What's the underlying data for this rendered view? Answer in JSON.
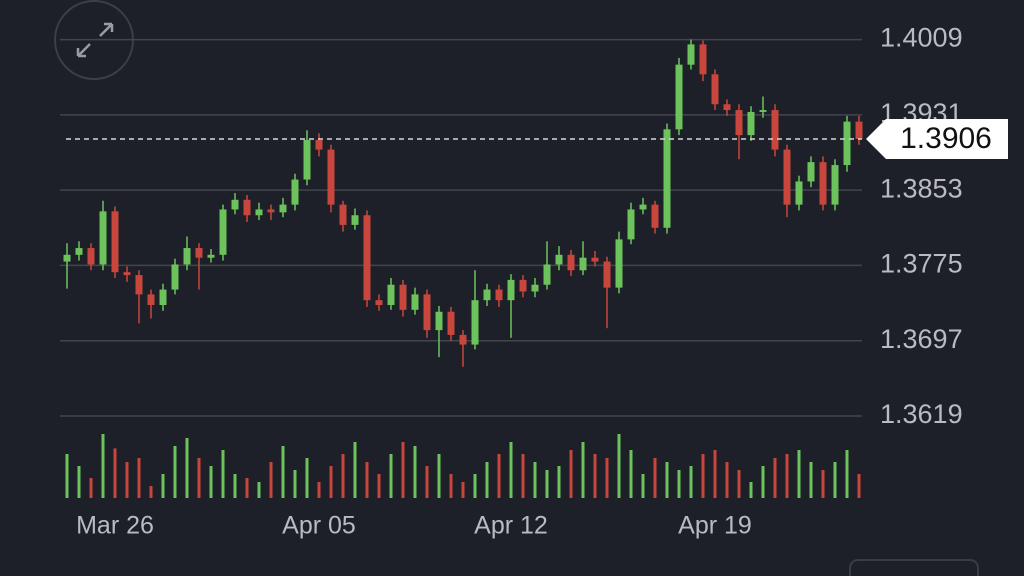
{
  "chart_data": {
    "type": "candlestick",
    "categories": [
      null,
      null,
      null,
      null,
      "Mar 26",
      null,
      null,
      null,
      null,
      null,
      null,
      null,
      null,
      null,
      null,
      null,
      null,
      null,
      null,
      null,
      null,
      "Apr 05",
      null,
      null,
      null,
      null,
      null,
      null,
      null,
      null,
      null,
      null,
      null,
      null,
      null,
      null,
      null,
      "Apr 12",
      null,
      null,
      null,
      null,
      null,
      null,
      null,
      null,
      null,
      null,
      null,
      null,
      null,
      null,
      null,
      null,
      "Apr 19",
      null,
      null,
      null,
      null,
      null,
      null,
      null,
      null,
      null,
      null,
      null,
      null
    ],
    "open": [
      1.3779,
      1.3786,
      1.3793,
      1.3776,
      1.3831,
      1.3768,
      1.3765,
      1.3745,
      1.3734,
      1.375,
      1.3776,
      1.3793,
      1.3783,
      1.3786,
      1.3833,
      1.3843,
      1.3827,
      1.3833,
      1.383,
      1.3838,
      1.3864,
      1.3905,
      1.3895,
      1.3838,
      1.3817,
      1.3827,
      1.3739,
      1.3734,
      1.3755,
      1.3729,
      1.3745,
      1.3708,
      1.3727,
      1.3703,
      1.3693,
      1.3739,
      1.375,
      1.3739,
      1.376,
      1.3748,
      1.3755,
      1.3776,
      1.3786,
      1.377,
      1.3783,
      1.3779,
      1.3752,
      1.3802,
      1.3833,
      1.3838,
      1.3814,
      1.3916,
      1.3983,
      1.4004,
      1.3973,
      1.3942,
      1.3936,
      1.391,
      1.3934,
      1.3936,
      1.3895,
      1.3838,
      1.3862,
      1.3882,
      1.3838,
      1.3879,
      1.3924
    ],
    "high": [
      1.3798,
      1.38,
      1.3798,
      1.3842,
      1.3836,
      1.3774,
      1.377,
      1.375,
      1.3756,
      1.3782,
      1.3805,
      1.3798,
      1.3792,
      1.3838,
      1.385,
      1.3848,
      1.384,
      1.3838,
      1.3845,
      1.387,
      1.3915,
      1.3912,
      1.39,
      1.3842,
      1.3834,
      1.3832,
      1.3745,
      1.3762,
      1.376,
      1.3752,
      1.375,
      1.3733,
      1.3732,
      1.3708,
      1.377,
      1.3756,
      1.3755,
      1.3766,
      1.3765,
      1.3762,
      1.38,
      1.3795,
      1.3791,
      1.38,
      1.379,
      1.3784,
      1.381,
      1.384,
      1.3845,
      1.3842,
      1.3922,
      1.399,
      1.4009,
      1.4008,
      1.3978,
      1.3947,
      1.3942,
      1.394,
      1.395,
      1.3942,
      1.39,
      1.3868,
      1.3888,
      1.3888,
      1.3885,
      1.393,
      1.393
    ],
    "low": [
      1.3751,
      1.378,
      1.377,
      1.377,
      1.3762,
      1.3758,
      1.3715,
      1.372,
      1.3728,
      1.3745,
      1.377,
      1.375,
      1.3778,
      1.378,
      1.3828,
      1.382,
      1.3822,
      1.3822,
      1.3825,
      1.3832,
      1.3858,
      1.3888,
      1.383,
      1.381,
      1.3812,
      1.3732,
      1.3728,
      1.3729,
      1.3722,
      1.3724,
      1.37,
      1.368,
      1.3697,
      1.367,
      1.3688,
      1.3733,
      1.3732,
      1.37,
      1.3742,
      1.3742,
      1.375,
      1.377,
      1.3764,
      1.3765,
      1.3774,
      1.371,
      1.3746,
      1.3797,
      1.3828,
      1.3808,
      1.3808,
      1.391,
      1.3978,
      1.3966,
      1.3936,
      1.393,
      1.3885,
      1.3904,
      1.3928,
      1.3888,
      1.3825,
      1.3832,
      1.3856,
      1.3832,
      1.3832,
      1.3872,
      1.39
    ],
    "close": [
      1.3786,
      1.3793,
      1.3776,
      1.3831,
      1.3768,
      1.3765,
      1.3745,
      1.3734,
      1.375,
      1.3776,
      1.3793,
      1.3783,
      1.3786,
      1.3833,
      1.3843,
      1.3827,
      1.3833,
      1.383,
      1.3838,
      1.3864,
      1.3905,
      1.3895,
      1.3838,
      1.3817,
      1.3827,
      1.3739,
      1.3734,
      1.3755,
      1.3729,
      1.3745,
      1.3708,
      1.3727,
      1.3703,
      1.3693,
      1.3739,
      1.375,
      1.3739,
      1.376,
      1.3748,
      1.3755,
      1.3776,
      1.3786,
      1.377,
      1.3783,
      1.3779,
      1.3752,
      1.3802,
      1.3833,
      1.3838,
      1.3814,
      1.3916,
      1.3983,
      1.4004,
      1.3973,
      1.3942,
      1.3936,
      1.391,
      1.3934,
      1.3936,
      1.3895,
      1.3838,
      1.3862,
      1.3882,
      1.3838,
      1.3879,
      1.3924,
      1.3906
    ],
    "volume": [
      55,
      40,
      25,
      80,
      62,
      45,
      50,
      15,
      30,
      65,
      75,
      50,
      40,
      60,
      30,
      25,
      20,
      45,
      65,
      35,
      50,
      20,
      40,
      55,
      70,
      45,
      30,
      55,
      70,
      65,
      40,
      55,
      30,
      20,
      30,
      45,
      55,
      70,
      55,
      45,
      35,
      40,
      60,
      70,
      55,
      50,
      80,
      60,
      30,
      50,
      45,
      35,
      40,
      55,
      60,
      45,
      35,
      20,
      40,
      50,
      55,
      60,
      45,
      35,
      45,
      60,
      30
    ],
    "up_color": "#6cc35c",
    "down_color": "#c9463d",
    "ylim": [
      1.3619,
      1.405
    ],
    "yticks": [
      1.4009,
      1.3931,
      1.3853,
      1.3775,
      1.3697,
      1.3619
    ],
    "grid": true,
    "current_price": 1.3906
  }
}
